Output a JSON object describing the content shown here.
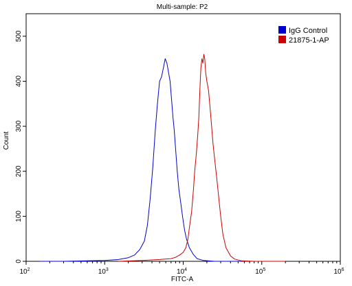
{
  "chart_data": {
    "type": "line",
    "title": "Multi-sample: P2",
    "xlabel": "FITC-A",
    "ylabel": "Count",
    "x_scale": "log",
    "xlim": [
      100,
      1000000
    ],
    "ylim": [
      0,
      550
    ],
    "x_ticks": [
      {
        "value": 100,
        "base": "10",
        "exp": "2"
      },
      {
        "value": 1000,
        "base": "10",
        "exp": "3"
      },
      {
        "value": 10000,
        "base": "10",
        "exp": "4"
      },
      {
        "value": 100000,
        "base": "10",
        "exp": "5"
      },
      {
        "value": 1000000,
        "base": "10",
        "exp": "6"
      }
    ],
    "y_ticks": [
      "0",
      "100",
      "200",
      "300",
      "400",
      "500"
    ],
    "grid": false,
    "legend_position": "top-right",
    "series": [
      {
        "name": "IgG Control",
        "color": "#0000cc",
        "points": [
          [
            150,
            0
          ],
          [
            300,
            0
          ],
          [
            600,
            1
          ],
          [
            1000,
            2
          ],
          [
            1500,
            4
          ],
          [
            2000,
            8
          ],
          [
            2400,
            14
          ],
          [
            2800,
            26
          ],
          [
            3200,
            45
          ],
          [
            3500,
            80
          ],
          [
            3800,
            140
          ],
          [
            4100,
            210
          ],
          [
            4400,
            290
          ],
          [
            4700,
            350
          ],
          [
            5000,
            400
          ],
          [
            5300,
            410
          ],
          [
            5600,
            430
          ],
          [
            5900,
            450
          ],
          [
            6200,
            440
          ],
          [
            6500,
            420
          ],
          [
            6800,
            400
          ],
          [
            7100,
            360
          ],
          [
            7400,
            320
          ],
          [
            7700,
            290
          ],
          [
            8000,
            250
          ],
          [
            8400,
            200
          ],
          [
            8800,
            160
          ],
          [
            9300,
            130
          ],
          [
            9800,
            100
          ],
          [
            10400,
            70
          ],
          [
            11000,
            50
          ],
          [
            12000,
            30
          ],
          [
            13500,
            15
          ],
          [
            15000,
            6
          ],
          [
            18000,
            2
          ],
          [
            25000,
            0
          ],
          [
            100000,
            0
          ]
        ]
      },
      {
        "name": "21875-1-AP",
        "color": "#cc0000",
        "points": [
          [
            1500,
            0
          ],
          [
            3000,
            2
          ],
          [
            5000,
            4
          ],
          [
            7000,
            6
          ],
          [
            8000,
            9
          ],
          [
            9000,
            14
          ],
          [
            10000,
            20
          ],
          [
            10800,
            30
          ],
          [
            11500,
            50
          ],
          [
            12000,
            75
          ],
          [
            12800,
            110
          ],
          [
            13500,
            160
          ],
          [
            14000,
            200
          ],
          [
            14700,
            240
          ],
          [
            15300,
            280
          ],
          [
            15800,
            320
          ],
          [
            16300,
            380
          ],
          [
            16800,
            430
          ],
          [
            17300,
            450
          ],
          [
            17800,
            440
          ],
          [
            18300,
            460
          ],
          [
            18800,
            450
          ],
          [
            19300,
            420
          ],
          [
            20000,
            400
          ],
          [
            21000,
            380
          ],
          [
            22000,
            340
          ],
          [
            23000,
            300
          ],
          [
            24000,
            260
          ],
          [
            25000,
            230
          ],
          [
            26500,
            190
          ],
          [
            28000,
            150
          ],
          [
            30000,
            100
          ],
          [
            32000,
            60
          ],
          [
            35000,
            30
          ],
          [
            40000,
            12
          ],
          [
            45000,
            5
          ],
          [
            55000,
            1
          ],
          [
            80000,
            0
          ],
          [
            200000,
            0
          ]
        ]
      }
    ]
  }
}
